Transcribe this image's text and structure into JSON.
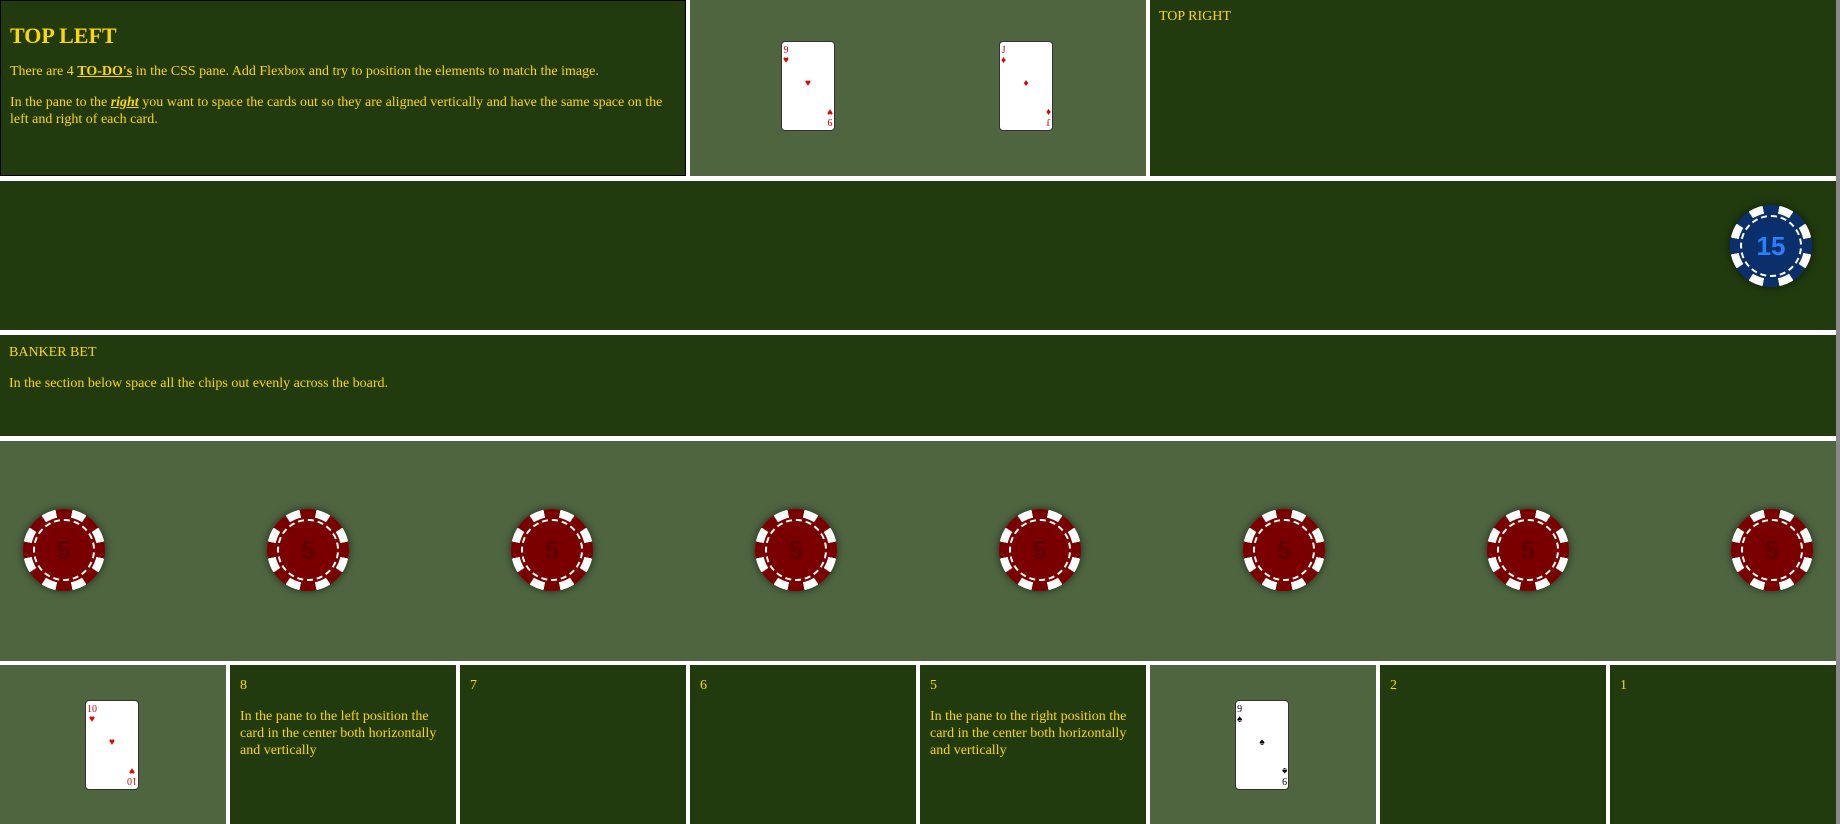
{
  "top_left": {
    "title": "TOP LEFT",
    "p1_before": "There are 4 ",
    "p1_link": "TO-DO's",
    "p1_after": " in the CSS pane. Add Flexbox and try to position the elements to match the image.",
    "p2_before": "In the pane to the ",
    "p2_emph": "right",
    "p2_after": " you want to space the cards out so they are aligned vertically and have the same space on the left and right of each card."
  },
  "top_center": {
    "cards": [
      {
        "rank": "9",
        "suit": "♥",
        "color": "#e00000"
      },
      {
        "rank": "J",
        "suit": "♦",
        "color": "#e00000"
      }
    ]
  },
  "top_right": {
    "label": "TOP RIGHT"
  },
  "chip_row": {
    "chip": {
      "value": "15",
      "color": "#0a2f6a"
    }
  },
  "banker": {
    "title": "BANKER BET",
    "text": "In the section below space all the chips out evenly across the board."
  },
  "red_chips": {
    "chips": [
      "5",
      "5",
      "5",
      "5",
      "5",
      "5",
      "5",
      "5"
    ],
    "color": "#7a0000"
  },
  "bottom": {
    "card_10": {
      "rank": "10",
      "suit": "♥",
      "color": "#e00000"
    },
    "pane_8": {
      "num": "8",
      "text": "In the pane to the left position the card in the center both horizontally and vertically"
    },
    "pane_7": {
      "num": "7"
    },
    "pane_6": {
      "num": "6"
    },
    "pane_5": {
      "num": "5",
      "text": "In the pane to the right position the card in the center both horizontally and vertically"
    },
    "card_9": {
      "rank": "9",
      "suit": "♠",
      "color": "#000000"
    },
    "pane_2": {
      "num": "2"
    },
    "pane_1": {
      "num": "1"
    }
  }
}
